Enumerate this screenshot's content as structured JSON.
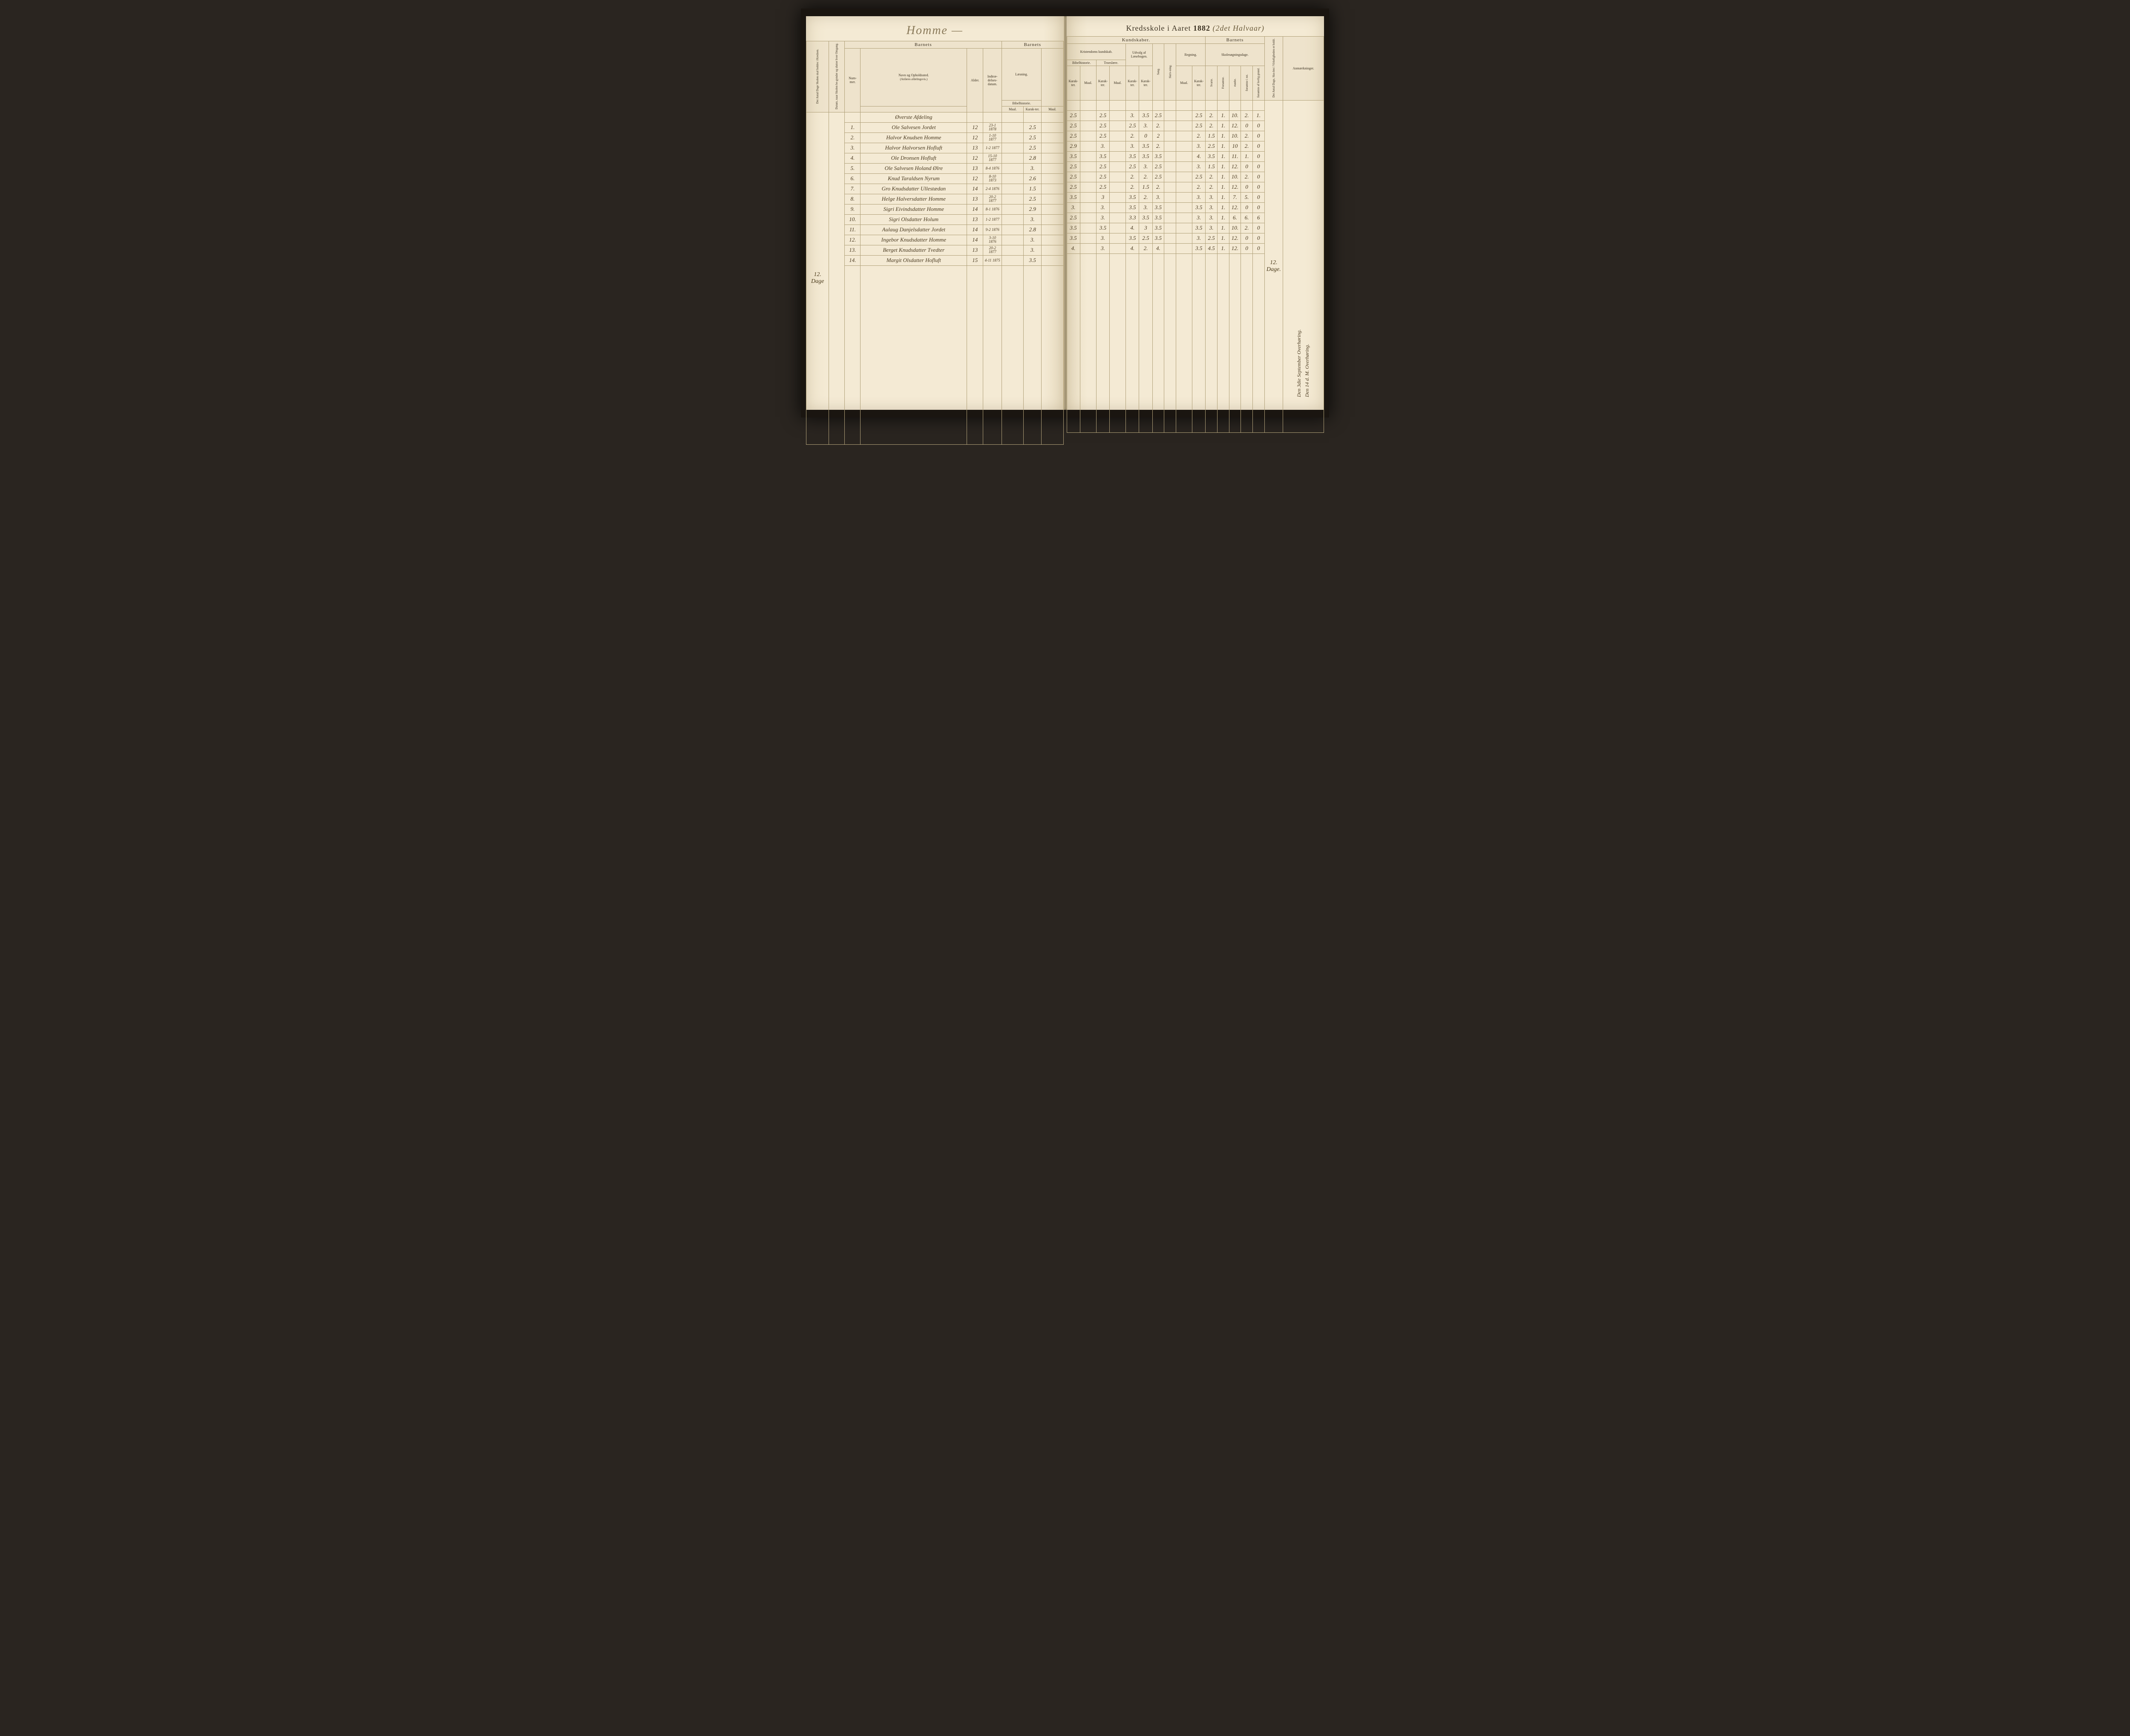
{
  "left_title": "Homme —",
  "right_title_prefix": "Kredsskole i Aaret",
  "right_title_year": "1882",
  "right_title_annotation": "(2det Halvaar)",
  "section_heading": "Øverste Afdeling",
  "margin_left": "12. Dage",
  "margin_right": "12. Dage.",
  "headers": {
    "barnets": "Barnets",
    "navn": "Navn og Opholdssted.",
    "navn_sub": "(Anføres afdelingsvis.)",
    "nummer": "Num-mer.",
    "alder": "Alder.",
    "indtra": "Indtræ-delses-datum.",
    "kundskab": "Kundskaber.",
    "laesning": "Læsning.",
    "kristen": "Kristendoms kundskab.",
    "bibel": "Bibelhistorie.",
    "troes": "Troeslære.",
    "udvalg": "Udvalg af Læsebogen.",
    "sang": "Sang.",
    "skriv": "Skriv-ning.",
    "regning": "Regning.",
    "maal": "Maal.",
    "karak": "Karak-ter.",
    "skoledage": "Skolesøgningsdage.",
    "anmerk": "Anmærkninger.",
    "col_a": "Det Antal Dage Skolen skal holdes i Kredsen.",
    "col_b": "Datum, naar Skolen be-gynder og slutter hver Omgang.",
    "col_c": "Det Antal Dage, Sko-len i Virkeligheden er holdt.",
    "sd1": "Svarte.",
    "sd2": "Forsømte.",
    "sd3": "mødte.",
    "sd4": "forsømte i rot.",
    "sd5": "forsømte af lovlig grund."
  },
  "rows": [
    {
      "n": "1",
      "name": "Ole Salvesen Jordet",
      "age": "12",
      "dob": "23-1 1878",
      "r1": "2.5",
      "r2": "2.5",
      "r3": "2.5",
      "r4": "3.",
      "r5": "3.5",
      "r6": "2.5",
      "r7": "2.5",
      "s1": "2.",
      "s2": "1.",
      "s3": "10.",
      "s4": "2.",
      "s5": "1."
    },
    {
      "n": "2",
      "name": "Halvor Knudsen Homme",
      "age": "12",
      "dob": "1-10 1877",
      "r1": "2.5",
      "r2": "2.5",
      "r3": "2.5",
      "r4": "2.5",
      "r5": "3.",
      "r6": "2.",
      "r7": "2.5",
      "s1": "2.",
      "s2": "1.",
      "s3": "12.",
      "s4": "0",
      "s5": "0"
    },
    {
      "n": "3",
      "name": "Halvor Halvorsen Hofluft",
      "age": "13",
      "dob": "1-2 1877",
      "r1": "2.5",
      "r2": "2.5",
      "r3": "2.5",
      "r4": "2.",
      "r5": "0",
      "r6": "2",
      "r7": "2.",
      "s1": "1.5",
      "s2": "1.",
      "s3": "10.",
      "s4": "2.",
      "s5": "0"
    },
    {
      "n": "4",
      "name": "Ole Dronsen Hofluft",
      "age": "12",
      "dob": "15-10 1877",
      "r1": "2.8",
      "r2": "2.9",
      "r3": "3.",
      "r4": "3.",
      "r5": "3.5",
      "r6": "2.",
      "r7": "3.",
      "s1": "2.5",
      "s2": "1.",
      "s3": "10",
      "s4": "2.",
      "s5": "0"
    },
    {
      "n": "5",
      "name": "Ole Salvesen Holand Ølre",
      "age": "13",
      "dob": "8-4 1876",
      "r1": "3.",
      "r2": "3.5",
      "r3": "3.5",
      "r4": "3.5",
      "r5": "3.5",
      "r6": "3.5",
      "r7": "4.",
      "s1": "3.5",
      "s2": "1.",
      "s3": "11.",
      "s4": "1.",
      "s5": "0"
    },
    {
      "n": "6",
      "name": "Knud Taraldsen Nyrum",
      "age": "12",
      "dob": "8-10 1873",
      "r1": "2.6",
      "r2": "2.5",
      "r3": "2.5",
      "r4": "2.5",
      "r5": "3.",
      "r6": "2.5",
      "r7": "3.",
      "s1": "1.5",
      "s2": "1.",
      "s3": "12.",
      "s4": "0",
      "s5": "0"
    },
    {
      "n": "7",
      "name": "Gro Knudsdatter Ullestædan",
      "age": "14",
      "dob": "2-4 1876",
      "r1": "1.5",
      "r2": "2.5",
      "r3": "2.5",
      "r4": "2.",
      "r5": "2.",
      "r6": "2.5",
      "r7": "2.5",
      "s1": "2.",
      "s2": "1.",
      "s3": "10.",
      "s4": "2.",
      "s5": "0"
    },
    {
      "n": "8",
      "name": "Helge Halversdatter Homme",
      "age": "13",
      "dob": "20-2 1877",
      "r1": "2.5",
      "r2": "2.5",
      "r3": "2.5",
      "r4": "2.",
      "r5": "1.5",
      "r6": "2.",
      "r7": "2.",
      "s1": "2.",
      "s2": "1.",
      "s3": "12.",
      "s4": "0",
      "s5": "0"
    },
    {
      "n": "9",
      "name": "Sigri Eivindsdatter Homme",
      "age": "14",
      "dob": "8-1 1876",
      "r1": "2.9",
      "r2": "3.5",
      "r3": "3",
      "r4": "3.5",
      "r5": "2.",
      "r6": "3.",
      "r7": "3.",
      "s1": "3.",
      "s2": "1.",
      "s3": "7.",
      "s4": "5.",
      "s5": "0"
    },
    {
      "n": "10",
      "name": "Sigri Olsdatter Holum",
      "age": "13",
      "dob": "1-2 1877",
      "r1": "3.",
      "r2": "3.",
      "r3": "3.",
      "r4": "3.5",
      "r5": "3.",
      "r6": "3.5",
      "r7": "3.5",
      "s1": "3.",
      "s2": "1.",
      "s3": "12.",
      "s4": "0",
      "s5": "0"
    },
    {
      "n": "11",
      "name": "Aulaug Danjelsdatter Jordet",
      "age": "14",
      "dob": "9-2 1876",
      "r1": "2.8",
      "r2": "2.5",
      "r3": "3.",
      "r4": "3.3",
      "r5": "3.5",
      "r6": "3.5",
      "r7": "3.",
      "s1": "3.",
      "s2": "1.",
      "s3": "6.",
      "s4": "6.",
      "s5": "6"
    },
    {
      "n": "12",
      "name": "Ingebor Knudsdatter Homme",
      "age": "14",
      "dob": "3-10 1876",
      "r1": "3.",
      "r2": "3.5",
      "r3": "3.5",
      "r4": "4.",
      "r5": "3",
      "r6": "3.5",
      "r7": "3.5",
      "s1": "3.",
      "s2": "1.",
      "s3": "10.",
      "s4": "2.",
      "s5": "0"
    },
    {
      "n": "13",
      "name": "Berget Knudsdatter Tvedter",
      "age": "13",
      "dob": "20-2 1877",
      "r1": "3.",
      "r2": "3.5",
      "r3": "3.",
      "r4": "3.5",
      "r5": "2.5",
      "r6": "3.5",
      "r7": "3.",
      "s1": "2.5",
      "s2": "1.",
      "s3": "12.",
      "s4": "0",
      "s5": "0"
    },
    {
      "n": "14",
      "name": "Margit Olsdatter Hofluft",
      "age": "15",
      "dob": "4-11 1875",
      "r1": "3.5",
      "r2": "4.",
      "r3": "3.",
      "r4": "4.",
      "r5": "2.",
      "r6": "4.",
      "r7": "3.5",
      "s1": "4.5",
      "s2": "1.",
      "s3": "12.",
      "s4": "0",
      "s5": "0"
    }
  ],
  "bottom_notes": [
    "Den 3die September Overhøring.",
    "Den 14 d. M. Overhøring."
  ],
  "colors": {
    "paper": "#f4ead4",
    "ink": "#3a3020",
    "rule": "#b0a078",
    "faded": "#8a7a5a"
  }
}
